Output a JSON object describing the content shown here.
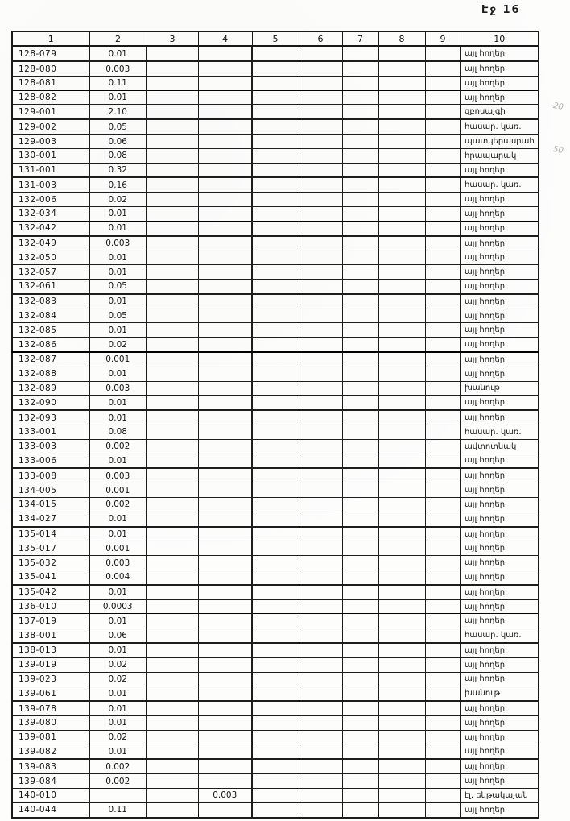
{
  "page_label": "Էջ 16",
  "colors": {
    "ink": "#141414",
    "paper": "#fdfdfc",
    "pencil": "#979590"
  },
  "handwritten_annotations": [
    {
      "text": "20"
    },
    {
      "text": "50"
    }
  ],
  "table": {
    "headers": [
      "1",
      "2",
      "3",
      "4",
      "5",
      "6",
      "7",
      "8",
      "9",
      "10"
    ],
    "rows": [
      {
        "c1": "128-079",
        "c2": "0.01",
        "c10": "այլ հողեր"
      },
      {
        "c1": "128-080",
        "c2": "0.003",
        "c10": "այլ հողեր"
      },
      {
        "c1": "128-081",
        "c2": "0.11",
        "c10": "այլ հողեր"
      },
      {
        "c1": "128-082",
        "c2": "0.01",
        "c10": "այլ հողեր"
      },
      {
        "c1": "129-001",
        "c2": "2.10",
        "c10": "զբոսայգի"
      },
      {
        "c1": "129-002",
        "c2": "0.05",
        "c10": "հասար. կառ."
      },
      {
        "c1": "129-003",
        "c2": "0.06",
        "c10": "պատկերասրահ"
      },
      {
        "c1": "130-001",
        "c2": "0.08",
        "c10": "հրապարակ"
      },
      {
        "c1": "131-001",
        "c2": "0.32",
        "c10": "այլ հողեր"
      },
      {
        "c1": "131-003",
        "c2": "0.16",
        "c10": "հասար. կառ."
      },
      {
        "c1": "132-006",
        "c2": "0.02",
        "c10": "այլ հողեր"
      },
      {
        "c1": "132-034",
        "c2": "0.01",
        "c10": "այլ հողեր"
      },
      {
        "c1": "132-042",
        "c2": "0.01",
        "c10": "այլ հողեր"
      },
      {
        "c1": "132-049",
        "c2": "0.003",
        "c10": "այլ հողեր"
      },
      {
        "c1": "132-050",
        "c2": "0.01",
        "c10": "այլ հողեր"
      },
      {
        "c1": "132-057",
        "c2": "0.01",
        "c10": "այլ հողեր"
      },
      {
        "c1": "132-061",
        "c2": "0.05",
        "c10": "այլ հողեր"
      },
      {
        "c1": "132-083",
        "c2": "0.01",
        "c10": "այլ հողեր"
      },
      {
        "c1": "132-084",
        "c2": "0.05",
        "c10": "այլ հողեր"
      },
      {
        "c1": "132-085",
        "c2": "0.01",
        "c10": "այլ հողեր"
      },
      {
        "c1": "132-086",
        "c2": "0.02",
        "c10": "այլ հողեր"
      },
      {
        "c1": "132-087",
        "c2": "0.001",
        "c10": "այլ հողեր"
      },
      {
        "c1": "132-088",
        "c2": "0.01",
        "c10": "այլ հողեր"
      },
      {
        "c1": "132-089",
        "c2": "0.003",
        "c10": "խանութ"
      },
      {
        "c1": "132-090",
        "c2": "0.01",
        "c10": "այլ հողեր"
      },
      {
        "c1": "132-093",
        "c2": "0.01",
        "c10": "այլ հողեր"
      },
      {
        "c1": "133-001",
        "c2": "0.08",
        "c10": "հասար. կառ."
      },
      {
        "c1": "133-003",
        "c2": "0.002",
        "c10": "ավտոտնակ"
      },
      {
        "c1": "133-006",
        "c2": "0.01",
        "c10": "այլ հողեր"
      },
      {
        "c1": "133-008",
        "c2": "0.003",
        "c10": "այլ հողեր"
      },
      {
        "c1": "134-005",
        "c2": "0.001",
        "c10": "այլ հողեր"
      },
      {
        "c1": "134-015",
        "c2": "0.002",
        "c10": "այլ հողեր"
      },
      {
        "c1": "134-027",
        "c2": "0.01",
        "c10": "այլ հողեր"
      },
      {
        "c1": "135-014",
        "c2": "0.01",
        "c10": "այլ հողեր"
      },
      {
        "c1": "135-017",
        "c2": "0.001",
        "c10": "այլ հողեր"
      },
      {
        "c1": "135-032",
        "c2": "0.003",
        "c10": "այլ հողեր"
      },
      {
        "c1": "135-041",
        "c2": "0.004",
        "c10": "այլ հողեր"
      },
      {
        "c1": "135-042",
        "c2": "0.01",
        "c10": "այլ հողեր"
      },
      {
        "c1": "136-010",
        "c2": "0.0003",
        "c10": "այլ հողեր"
      },
      {
        "c1": "137-019",
        "c2": "0.01",
        "c10": "այլ հողեր"
      },
      {
        "c1": "138-001",
        "c2": "0.06",
        "c10": "հասար. կառ."
      },
      {
        "c1": "138-013",
        "c2": "0.01",
        "c10": "այլ հողեր"
      },
      {
        "c1": "139-019",
        "c2": "0.02",
        "c10": "այլ հողեր"
      },
      {
        "c1": "139-023",
        "c2": "0.02",
        "c10": "այլ հողեր"
      },
      {
        "c1": "139-061",
        "c2": "0.01",
        "c10": "խանութ"
      },
      {
        "c1": "139-078",
        "c2": "0.01",
        "c10": "այլ հողեր"
      },
      {
        "c1": "139-080",
        "c2": "0.01",
        "c10": "այլ հողեր"
      },
      {
        "c1": "139-081",
        "c2": "0.02",
        "c10": "այլ հողեր"
      },
      {
        "c1": "139-082",
        "c2": "0.01",
        "c10": "այլ հողեր"
      },
      {
        "c1": "139-083",
        "c2": "0.002",
        "c10": "այլ հողեր"
      },
      {
        "c1": "139-084",
        "c2": "0.002",
        "c10": "այլ հողեր"
      },
      {
        "c1": "140-010",
        "c4": "0.003",
        "c10": "էլ. ենթակայան"
      },
      {
        "c1": "140-044",
        "c2": "0.11",
        "c10": "այլ հողեր"
      }
    ]
  }
}
